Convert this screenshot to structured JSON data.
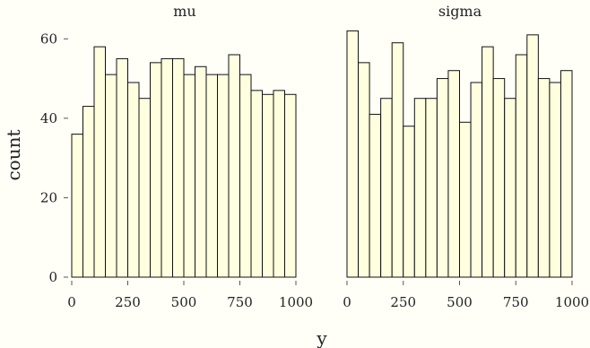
{
  "chart_data": {
    "type": "bar",
    "xlabel": "y",
    "ylabel": "count",
    "xlim": [
      0,
      1000
    ],
    "ylim": [
      0,
      63
    ],
    "bin_width": 50,
    "x_ticks": [
      0,
      250,
      500,
      750,
      1000
    ],
    "y_ticks": [
      0,
      20,
      40,
      60
    ],
    "grid": false,
    "colors": {
      "bar_fill": "#ffffe0",
      "bar_stroke": "#111111",
      "background": "#fffff8"
    },
    "panels": [
      {
        "title": "mu",
        "bin_starts": [
          0,
          50,
          100,
          150,
          200,
          250,
          300,
          350,
          400,
          450,
          500,
          550,
          600,
          650,
          700,
          750,
          800,
          850,
          900,
          950
        ],
        "counts": [
          36,
          43,
          58,
          51,
          55,
          49,
          45,
          54,
          55,
          55,
          51,
          53,
          51,
          51,
          56,
          51,
          47,
          46,
          47,
          46
        ]
      },
      {
        "title": "sigma",
        "bin_starts": [
          0,
          50,
          100,
          150,
          200,
          250,
          300,
          350,
          400,
          450,
          500,
          550,
          600,
          650,
          700,
          750,
          800,
          850,
          900,
          950
        ],
        "counts": [
          62,
          54,
          41,
          45,
          59,
          38,
          45,
          45,
          50,
          52,
          39,
          49,
          58,
          50,
          45,
          56,
          61,
          50,
          49,
          52
        ]
      }
    ]
  }
}
